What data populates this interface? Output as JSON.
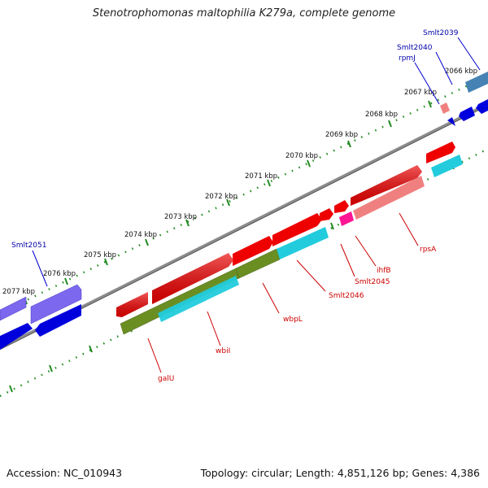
{
  "title": "Stenotrophomonas maltophilia K279a, complete genome",
  "footer": {
    "accession": "Accession: NC_010943",
    "stats": "Topology: circular; Length: 4,851,126 bp; Genes: 4,386"
  },
  "ruler": {
    "ticks": [
      "2066 kbp",
      "2067 kbp",
      "2068 kbp",
      "2069 kbp",
      "2070 kbp",
      "2071 kbp",
      "2072 kbp",
      "2073 kbp",
      "2074 kbp",
      "2075 kbp",
      "2076 kbp",
      "2077 kbp"
    ]
  },
  "genes": {
    "Smlt2039": "Smlt2039",
    "Smlt2040": "Smlt2040",
    "rpmJ": "rpmJ",
    "Smlt2051": "Smlt2051",
    "galU": "galU",
    "wbiI": "wbiI",
    "wbpL": "wbpL",
    "Smlt2046": "Smlt2046",
    "Smlt2045": "Smlt2045",
    "ihfB": "ihfB",
    "rpsA": "rpsA"
  },
  "colors": {
    "cds_forward": "#ee0000",
    "cds_reverse": "#0000dd",
    "rrna_cyan": "#22ccdd",
    "olive": "#6b8e23",
    "salmon": "#f08080",
    "pink": "#ff1493",
    "purple": "#7b68ee",
    "steelblue": "#4682b4",
    "label_red": "#cc0000",
    "label_blue": "#0000aa",
    "tick_green": "#228b22",
    "backbone": "#808080"
  }
}
